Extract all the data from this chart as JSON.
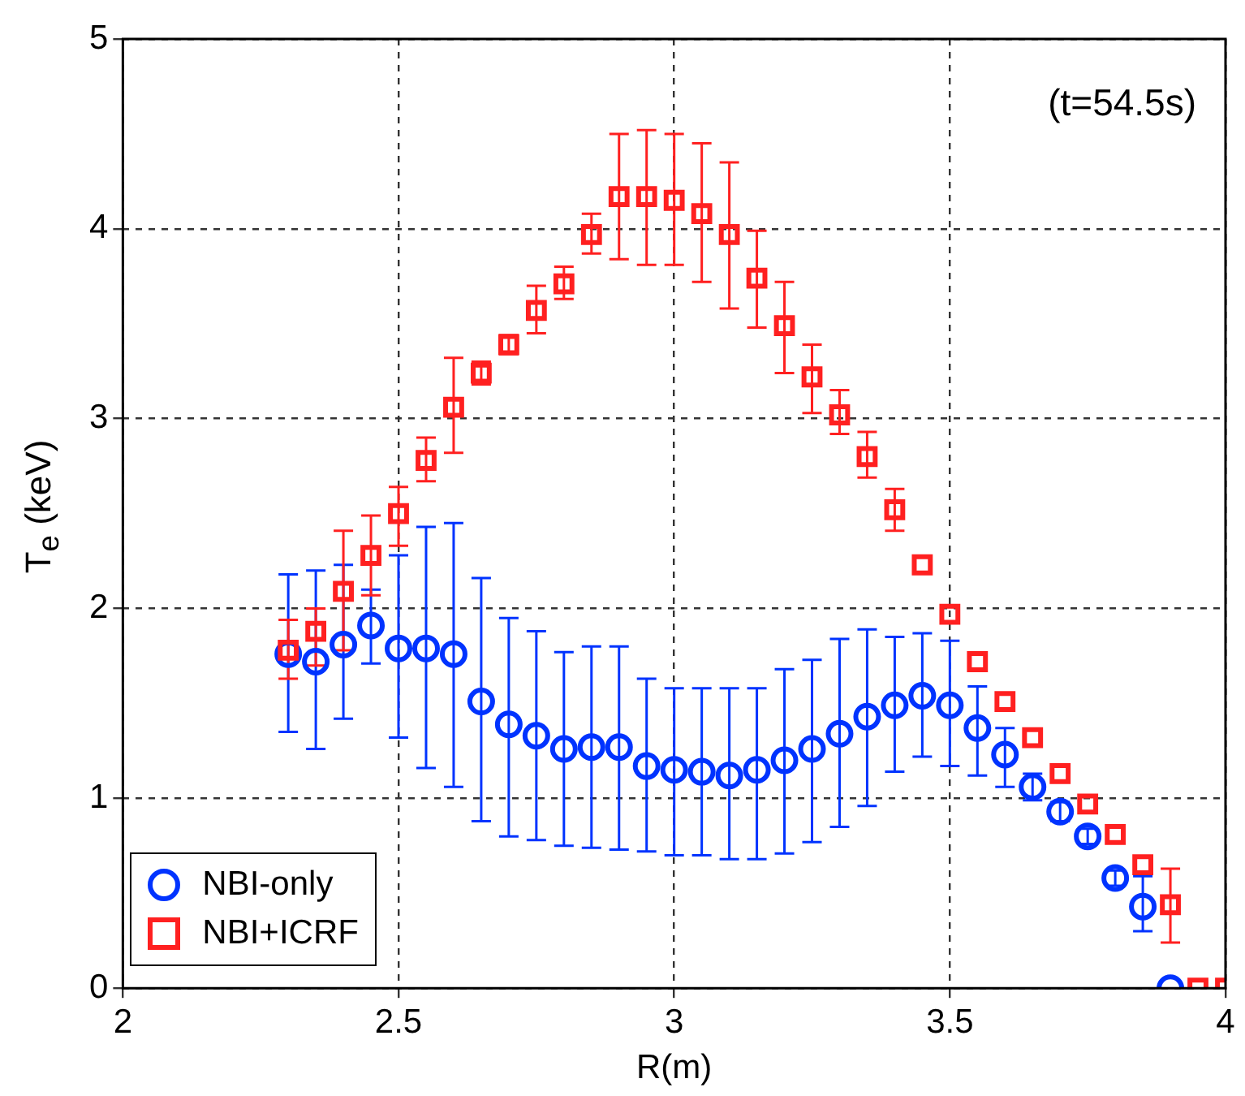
{
  "chart_data": {
    "type": "scatter",
    "xlabel": "R(m)",
    "ylabel": "T$_{e}$ (keV)",
    "annotations": [
      "(t=54.5s)"
    ],
    "xlim": [
      2,
      4
    ],
    "xticks": [
      2,
      2.5,
      3,
      3.5,
      4
    ],
    "ylim": [
      0,
      5
    ],
    "yticks": [
      0,
      1,
      2,
      3,
      4,
      5
    ],
    "grid": true,
    "legend": "bottom left",
    "series": [
      {
        "name": "NBI-only",
        "color": "#0033ff",
        "marker": "circle",
        "x": [
          2.3,
          2.35,
          2.4,
          2.45,
          2.5,
          2.55,
          2.6,
          2.65,
          2.7,
          2.75,
          2.8,
          2.85,
          2.9,
          2.95,
          3.0,
          3.05,
          3.1,
          3.15,
          3.2,
          3.25,
          3.3,
          3.35,
          3.4,
          3.45,
          3.5,
          3.55,
          3.6,
          3.65,
          3.7,
          3.75,
          3.8,
          3.85,
          3.9
        ],
        "values": [
          1.76,
          1.72,
          1.81,
          1.91,
          1.79,
          1.79,
          1.76,
          1.51,
          1.39,
          1.33,
          1.26,
          1.27,
          1.27,
          1.17,
          1.15,
          1.14,
          1.12,
          1.15,
          1.2,
          1.26,
          1.34,
          1.43,
          1.49,
          1.54,
          1.49,
          1.37,
          1.23,
          1.06,
          0.93,
          0.8,
          0.58,
          0.43,
          0
        ],
        "errors": [
          [
            1.35,
            2.18
          ],
          [
            1.26,
            2.2
          ],
          [
            1.42,
            2.23
          ],
          [
            1.71,
            2.1
          ],
          [
            1.32,
            2.28
          ],
          [
            1.16,
            2.43
          ],
          [
            1.06,
            2.45
          ],
          [
            0.88,
            2.16
          ],
          [
            0.8,
            1.95
          ],
          [
            0.78,
            1.88
          ],
          [
            0.75,
            1.77
          ],
          [
            0.74,
            1.8
          ],
          [
            0.73,
            1.8
          ],
          [
            0.72,
            1.63
          ],
          [
            0.7,
            1.58
          ],
          [
            0.7,
            1.58
          ],
          [
            0.68,
            1.58
          ],
          [
            0.68,
            1.58
          ],
          [
            0.71,
            1.68
          ],
          [
            0.77,
            1.73
          ],
          [
            0.85,
            1.84
          ],
          [
            0.96,
            1.89
          ],
          [
            1.14,
            1.85
          ],
          [
            1.22,
            1.87
          ],
          [
            1.17,
            1.83
          ],
          [
            1.12,
            1.59
          ],
          [
            1.06,
            1.37
          ],
          [
            0.99,
            1.13
          ],
          [
            0.88,
            0.98
          ],
          [
            0.76,
            0.84
          ],
          [
            0.54,
            0.62
          ],
          [
            0.3,
            0.59
          ],
          null
        ]
      },
      {
        "name": "NBI+ICRF",
        "color": "#ff2020",
        "marker": "square",
        "x": [
          2.3,
          2.35,
          2.4,
          2.45,
          2.5,
          2.55,
          2.6,
          2.65,
          2.7,
          2.75,
          2.8,
          2.85,
          2.9,
          2.95,
          3.0,
          3.05,
          3.1,
          3.15,
          3.2,
          3.25,
          3.3,
          3.35,
          3.4,
          3.45,
          3.5,
          3.55,
          3.6,
          3.65,
          3.7,
          3.75,
          3.8,
          3.85,
          3.9,
          3.95,
          4.0
        ],
        "values": [
          1.78,
          1.88,
          2.09,
          2.28,
          2.5,
          2.78,
          3.06,
          3.24,
          3.39,
          3.57,
          3.71,
          3.97,
          4.17,
          4.17,
          4.15,
          4.08,
          3.97,
          3.74,
          3.49,
          3.22,
          3.02,
          2.8,
          2.52,
          2.23,
          1.97,
          1.72,
          1.51,
          1.32,
          1.13,
          0.97,
          0.81,
          0.65,
          0.44,
          0,
          0
        ],
        "errors": [
          [
            1.63,
            1.94
          ],
          [
            1.7,
            2.0
          ],
          [
            1.78,
            2.41
          ],
          [
            2.07,
            2.49
          ],
          [
            2.33,
            2.64
          ],
          [
            2.67,
            2.9
          ],
          [
            2.82,
            3.32
          ],
          [
            3.18,
            3.3
          ],
          [
            3.34,
            3.44
          ],
          [
            3.45,
            3.7
          ],
          [
            3.63,
            3.8
          ],
          [
            3.87,
            4.08
          ],
          [
            3.84,
            4.5
          ],
          [
            3.81,
            4.52
          ],
          [
            3.81,
            4.5
          ],
          [
            3.72,
            4.45
          ],
          [
            3.58,
            4.35
          ],
          [
            3.48,
            3.99
          ],
          [
            3.24,
            3.72
          ],
          [
            3.03,
            3.39
          ],
          [
            2.92,
            3.15
          ],
          [
            2.69,
            2.93
          ],
          [
            2.41,
            2.63
          ],
          null,
          null,
          null,
          null,
          null,
          null,
          null,
          null,
          null,
          [
            0.24,
            0.63
          ],
          null,
          null
        ]
      }
    ]
  }
}
